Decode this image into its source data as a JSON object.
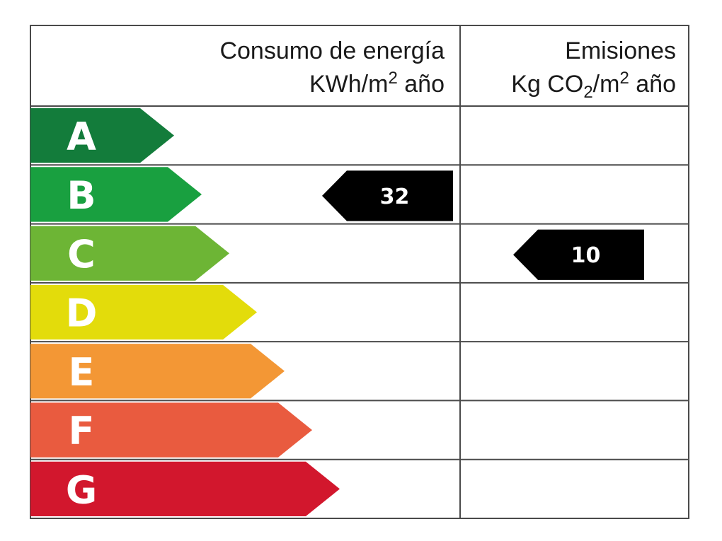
{
  "header": {
    "energy": {
      "line1": "Consumo de energía",
      "line2_pre": "KWh/m",
      "line2_sup": "2",
      "line2_post": " año"
    },
    "emissions": {
      "line1": "Emisiones",
      "line2_pre": "Kg CO",
      "line2_sub": "2",
      "line2_mid": "/m",
      "line2_sup": "2",
      "line2_post": " año"
    }
  },
  "ratings": [
    {
      "letter": "A",
      "color": "#137c3b"
    },
    {
      "letter": "B",
      "color": "#19a040"
    },
    {
      "letter": "C",
      "color": "#6db535"
    },
    {
      "letter": "D",
      "color": "#e3dc0b"
    },
    {
      "letter": "E",
      "color": "#f39735"
    },
    {
      "letter": "F",
      "color": "#e95b3f"
    },
    {
      "letter": "G",
      "color": "#d2172d"
    }
  ],
  "energy_indicator": {
    "class": "B",
    "value": "32",
    "color": "#000000"
  },
  "emissions_indicator": {
    "class": "C",
    "value": "10",
    "color": "#000000"
  }
}
